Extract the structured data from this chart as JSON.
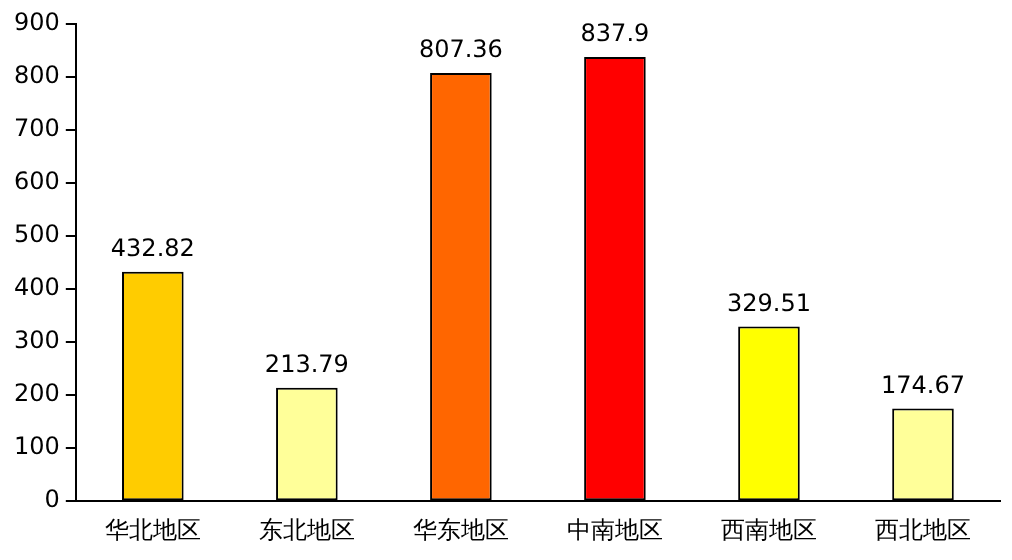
{
  "chart_data": {
    "type": "bar",
    "categories": [
      "华北地区",
      "东北地区",
      "华东地区",
      "中南地区",
      "西南地区",
      "西北地区"
    ],
    "values": [
      432.82,
      213.79,
      807.36,
      837.9,
      329.51,
      174.67
    ],
    "colors": [
      "#ffcc00",
      "#ffff99",
      "#ff6600",
      "#ff0000",
      "#ffff00",
      "#ffff99"
    ],
    "ylim": [
      0,
      900
    ],
    "yticks": [
      0,
      100,
      200,
      300,
      400,
      500,
      600,
      700,
      800,
      900
    ],
    "grid": false,
    "legend": false,
    "data_labels": true
  }
}
